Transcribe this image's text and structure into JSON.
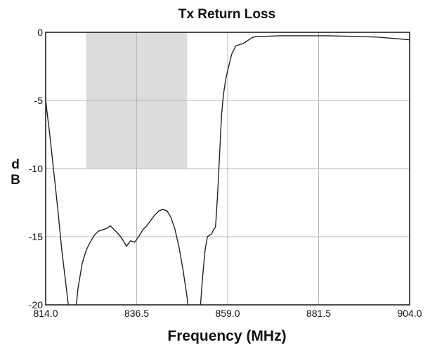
{
  "chart_data": {
    "type": "line",
    "title": "Tx Return Loss",
    "xlabel": "Frequency (MHz)",
    "ylabel_top": "d",
    "ylabel_bottom": "B",
    "xlim": [
      814.0,
      904.0
    ],
    "ylim": [
      -20,
      0
    ],
    "x_ticks": [
      814.0,
      836.5,
      859.0,
      881.5,
      904.0
    ],
    "x_tick_labels": [
      "814.0",
      "836.5",
      "859.0",
      "881.5",
      "904.0"
    ],
    "y_ticks": [
      0,
      -5,
      -10,
      -15,
      -20
    ],
    "y_tick_labels": [
      "0",
      "-5",
      "-10",
      "-15",
      "-20"
    ],
    "grid": true,
    "shaded_region": {
      "x": [
        824.0,
        849.0
      ],
      "y": [
        -10,
        0
      ]
    },
    "colors": {
      "line": "#222222",
      "band": "#dcdcdc",
      "grid": "#b8b8b8"
    },
    "series": [
      {
        "segments": [
          [
            [
              814.0,
              -5.0
            ],
            [
              815.0,
              -7.5
            ],
            [
              816.0,
              -10.2
            ],
            [
              817.0,
              -13.0
            ],
            [
              818.0,
              -16.0
            ],
            [
              819.0,
              -18.5
            ],
            [
              819.6,
              -20.0
            ]
          ],
          [
            [
              821.6,
              -20.0
            ],
            [
              822.0,
              -18.8
            ],
            [
              823.0,
              -17.0
            ],
            [
              824.0,
              -16.0
            ],
            [
              825.0,
              -15.4
            ],
            [
              826.0,
              -14.9
            ],
            [
              827.0,
              -14.6
            ],
            [
              828.0,
              -14.5
            ],
            [
              829.0,
              -14.4
            ],
            [
              830.0,
              -14.2
            ],
            [
              831.0,
              -14.5
            ],
            [
              832.0,
              -14.8
            ],
            [
              833.0,
              -15.2
            ],
            [
              834.0,
              -15.7
            ],
            [
              835.0,
              -15.3
            ],
            [
              836.0,
              -15.4
            ],
            [
              837.0,
              -15.0
            ],
            [
              838.0,
              -14.5
            ],
            [
              839.0,
              -14.2
            ],
            [
              840.0,
              -13.8
            ],
            [
              841.0,
              -13.4
            ],
            [
              842.0,
              -13.1
            ],
            [
              843.0,
              -13.0
            ],
            [
              844.0,
              -13.1
            ],
            [
              845.0,
              -13.6
            ],
            [
              846.0,
              -14.5
            ],
            [
              847.0,
              -15.8
            ],
            [
              848.0,
              -17.5
            ],
            [
              849.0,
              -19.5
            ],
            [
              849.2,
              -20.0
            ]
          ],
          [
            [
              852.3,
              -20.0
            ],
            [
              852.8,
              -18.0
            ],
            [
              853.4,
              -16.0
            ],
            [
              854.0,
              -15.0
            ],
            [
              855.0,
              -14.8
            ],
            [
              855.5,
              -14.5
            ],
            [
              856.0,
              -14.3
            ],
            [
              856.5,
              -12.0
            ],
            [
              857.0,
              -9.0
            ],
            [
              857.5,
              -6.0
            ],
            [
              858.0,
              -4.5
            ],
            [
              858.5,
              -3.5
            ],
            [
              859.0,
              -2.8
            ],
            [
              859.5,
              -2.2
            ],
            [
              860.0,
              -1.6
            ],
            [
              861.0,
              -1.0
            ],
            [
              862.0,
              -0.9
            ],
            [
              863.0,
              -0.8
            ],
            [
              864.0,
              -0.6
            ],
            [
              865.0,
              -0.4
            ],
            [
              866.0,
              -0.3
            ],
            [
              868.0,
              -0.3
            ],
            [
              872.0,
              -0.25
            ],
            [
              878.0,
              -0.25
            ],
            [
              884.0,
              -0.25
            ],
            [
              890.0,
              -0.3
            ],
            [
              896.0,
              -0.35
            ],
            [
              900.0,
              -0.45
            ],
            [
              904.0,
              -0.55
            ]
          ]
        ]
      }
    ]
  }
}
